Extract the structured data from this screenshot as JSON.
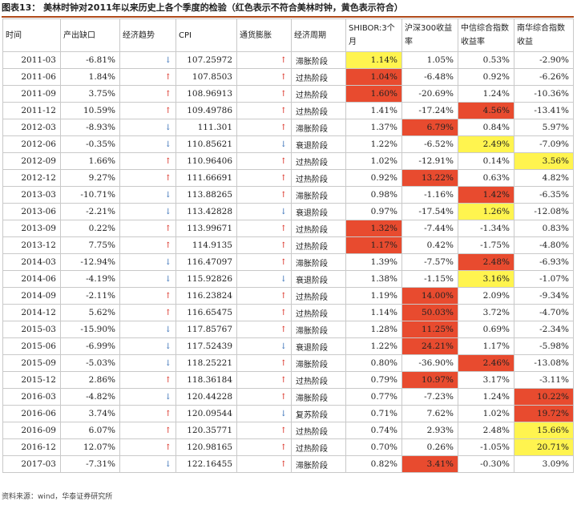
{
  "caption": {
    "label": "图表13：",
    "text": "美林时钟对2011年以来历史上各个季度的检验（红色表示不符合美林时钟，黄色表示符合）"
  },
  "headers": [
    "时间",
    "产出缺口",
    "经济趋势",
    "CPI",
    "通货膨胀",
    "经济周期",
    "SHIBOR:3个月",
    "沪深300收益率",
    "中信综合指数收益率",
    "南华综合指数收益"
  ],
  "colors": {
    "red": "#e84b2f",
    "yellow": "#fff44f",
    "up": "#d9281d",
    "down": "#3b73b9"
  },
  "rows": [
    {
      "t": "2011-03",
      "gap": "-6.81%",
      "trend": "↓",
      "cpi": "107.25972",
      "infl": "↑",
      "phase": "滞胀阶段",
      "shibor": "1.14%",
      "hs": "1.05%",
      "zx": "0.53%",
      "nh": "-2.90%",
      "hl": [
        "yellow",
        "",
        "",
        ""
      ]
    },
    {
      "t": "2011-06",
      "gap": "1.84%",
      "trend": "↑",
      "cpi": "107.8503",
      "infl": "↑",
      "phase": "过热阶段",
      "shibor": "1.04%",
      "hs": "-6.48%",
      "zx": "0.92%",
      "nh": "-6.26%",
      "hl": [
        "red",
        "",
        "",
        ""
      ]
    },
    {
      "t": "2011-09",
      "gap": "3.75%",
      "trend": "↑",
      "cpi": "108.96913",
      "infl": "↑",
      "phase": "过热阶段",
      "shibor": "1.60%",
      "hs": "-20.69%",
      "zx": "1.24%",
      "nh": "-10.36%",
      "hl": [
        "red",
        "",
        "",
        ""
      ]
    },
    {
      "t": "2011-12",
      "gap": "10.59%",
      "trend": "↑",
      "cpi": "109.49786",
      "infl": "↑",
      "phase": "过热阶段",
      "shibor": "1.41%",
      "hs": "-17.24%",
      "zx": "4.56%",
      "nh": "-13.41%",
      "hl": [
        "",
        "",
        "red",
        ""
      ]
    },
    {
      "t": "2012-03",
      "gap": "-8.93%",
      "trend": "↓",
      "cpi": "111.301",
      "infl": "↑",
      "phase": "滞胀阶段",
      "shibor": "1.37%",
      "hs": "6.79%",
      "zx": "0.84%",
      "nh": "5.97%",
      "hl": [
        "",
        "red",
        "",
        ""
      ]
    },
    {
      "t": "2012-06",
      "gap": "-0.35%",
      "trend": "↓",
      "cpi": "110.85621",
      "infl": "↓",
      "phase": "衰退阶段",
      "shibor": "1.22%",
      "hs": "-6.52%",
      "zx": "2.49%",
      "nh": "-7.09%",
      "hl": [
        "",
        "",
        "yellow",
        ""
      ]
    },
    {
      "t": "2012-09",
      "gap": "1.66%",
      "trend": "↑",
      "cpi": "110.96406",
      "infl": "↑",
      "phase": "过热阶段",
      "shibor": "1.02%",
      "hs": "-12.91%",
      "zx": "0.14%",
      "nh": "3.56%",
      "hl": [
        "",
        "",
        "",
        "yellow"
      ]
    },
    {
      "t": "2012-12",
      "gap": "9.27%",
      "trend": "↑",
      "cpi": "111.66691",
      "infl": "↑",
      "phase": "过热阶段",
      "shibor": "0.92%",
      "hs": "13.22%",
      "zx": "0.63%",
      "nh": "4.82%",
      "hl": [
        "",
        "red",
        "",
        ""
      ]
    },
    {
      "t": "2013-03",
      "gap": "-10.71%",
      "trend": "↓",
      "cpi": "113.88265",
      "infl": "↑",
      "phase": "滞胀阶段",
      "shibor": "0.98%",
      "hs": "-1.16%",
      "zx": "1.42%",
      "nh": "-6.35%",
      "hl": [
        "",
        "",
        "red",
        ""
      ]
    },
    {
      "t": "2013-06",
      "gap": "-2.21%",
      "trend": "↓",
      "cpi": "113.42828",
      "infl": "↓",
      "phase": "衰退阶段",
      "shibor": "0.97%",
      "hs": "-17.54%",
      "zx": "1.26%",
      "nh": "-12.08%",
      "hl": [
        "",
        "",
        "yellow",
        ""
      ]
    },
    {
      "t": "2013-09",
      "gap": "0.22%",
      "trend": "↑",
      "cpi": "113.99671",
      "infl": "↑",
      "phase": "过热阶段",
      "shibor": "1.32%",
      "hs": "-7.44%",
      "zx": "-1.34%",
      "nh": "0.83%",
      "hl": [
        "red",
        "",
        "",
        ""
      ]
    },
    {
      "t": "2013-12",
      "gap": "7.75%",
      "trend": "↑",
      "cpi": "114.9135",
      "infl": "↑",
      "phase": "过热阶段",
      "shibor": "1.17%",
      "hs": "0.42%",
      "zx": "-1.75%",
      "nh": "-4.80%",
      "hl": [
        "red",
        "",
        "",
        ""
      ]
    },
    {
      "t": "2014-03",
      "gap": "-12.94%",
      "trend": "↓",
      "cpi": "116.47097",
      "infl": "↑",
      "phase": "滞胀阶段",
      "shibor": "1.39%",
      "hs": "-7.57%",
      "zx": "2.48%",
      "nh": "-6.93%",
      "hl": [
        "",
        "",
        "red",
        ""
      ]
    },
    {
      "t": "2014-06",
      "gap": "-4.19%",
      "trend": "↓",
      "cpi": "115.92826",
      "infl": "↓",
      "phase": "衰退阶段",
      "shibor": "1.38%",
      "hs": "-1.15%",
      "zx": "3.16%",
      "nh": "-1.07%",
      "hl": [
        "",
        "",
        "yellow",
        ""
      ]
    },
    {
      "t": "2014-09",
      "gap": "-2.11%",
      "trend": "↑",
      "cpi": "116.23824",
      "infl": "↑",
      "phase": "过热阶段",
      "shibor": "1.19%",
      "hs": "14.00%",
      "zx": "2.09%",
      "nh": "-9.34%",
      "hl": [
        "",
        "red",
        "",
        ""
      ]
    },
    {
      "t": "2014-12",
      "gap": "5.62%",
      "trend": "↑",
      "cpi": "116.65475",
      "infl": "↑",
      "phase": "过热阶段",
      "shibor": "1.14%",
      "hs": "50.03%",
      "zx": "3.72%",
      "nh": "-4.70%",
      "hl": [
        "",
        "red",
        "",
        ""
      ]
    },
    {
      "t": "2015-03",
      "gap": "-15.90%",
      "trend": "↓",
      "cpi": "117.85767",
      "infl": "↑",
      "phase": "滞胀阶段",
      "shibor": "1.28%",
      "hs": "11.25%",
      "zx": "0.69%",
      "nh": "-2.34%",
      "hl": [
        "",
        "red",
        "",
        ""
      ]
    },
    {
      "t": "2015-06",
      "gap": "-6.99%",
      "trend": "↓",
      "cpi": "117.52439",
      "infl": "↓",
      "phase": "衰退阶段",
      "shibor": "1.22%",
      "hs": "24.21%",
      "zx": "1.17%",
      "nh": "-5.98%",
      "hl": [
        "",
        "red",
        "",
        ""
      ]
    },
    {
      "t": "2015-09",
      "gap": "-5.03%",
      "trend": "↓",
      "cpi": "118.25221",
      "infl": "↑",
      "phase": "滞胀阶段",
      "shibor": "0.80%",
      "hs": "-36.90%",
      "zx": "2.46%",
      "nh": "-13.08%",
      "hl": [
        "",
        "",
        "red",
        ""
      ]
    },
    {
      "t": "2015-12",
      "gap": "2.86%",
      "trend": "↑",
      "cpi": "118.36184",
      "infl": "↑",
      "phase": "过热阶段",
      "shibor": "0.79%",
      "hs": "10.97%",
      "zx": "3.17%",
      "nh": "-3.11%",
      "hl": [
        "",
        "red",
        "",
        ""
      ]
    },
    {
      "t": "2016-03",
      "gap": "-4.82%",
      "trend": "↓",
      "cpi": "120.44228",
      "infl": "↑",
      "phase": "滞胀阶段",
      "shibor": "0.77%",
      "hs": "-7.23%",
      "zx": "1.24%",
      "nh": "10.22%",
      "hl": [
        "",
        "",
        "",
        "red"
      ]
    },
    {
      "t": "2016-06",
      "gap": "3.74%",
      "trend": "↑",
      "cpi": "120.09544",
      "infl": "↓",
      "phase": "复苏阶段",
      "shibor": "0.71%",
      "hs": "7.62%",
      "zx": "1.02%",
      "nh": "19.72%",
      "hl": [
        "",
        "",
        "",
        "red"
      ]
    },
    {
      "t": "2016-09",
      "gap": "6.07%",
      "trend": "↑",
      "cpi": "120.35771",
      "infl": "↑",
      "phase": "过热阶段",
      "shibor": "0.74%",
      "hs": "2.93%",
      "zx": "2.48%",
      "nh": "15.66%",
      "hl": [
        "",
        "",
        "",
        "yellow"
      ]
    },
    {
      "t": "2016-12",
      "gap": "12.07%",
      "trend": "↑",
      "cpi": "120.98165",
      "infl": "↑",
      "phase": "过热阶段",
      "shibor": "0.70%",
      "hs": "0.26%",
      "zx": "-1.05%",
      "nh": "20.71%",
      "hl": [
        "",
        "",
        "",
        "yellow"
      ]
    },
    {
      "t": "2017-03",
      "gap": "-7.31%",
      "trend": "↓",
      "cpi": "122.16455",
      "infl": "↑",
      "phase": "滞胀阶段",
      "shibor": "0.82%",
      "hs": "3.41%",
      "zx": "-0.30%",
      "nh": "3.09%",
      "hl": [
        "",
        "red",
        "",
        ""
      ]
    }
  ],
  "source": "资料来源：wind，华泰证券研究所"
}
